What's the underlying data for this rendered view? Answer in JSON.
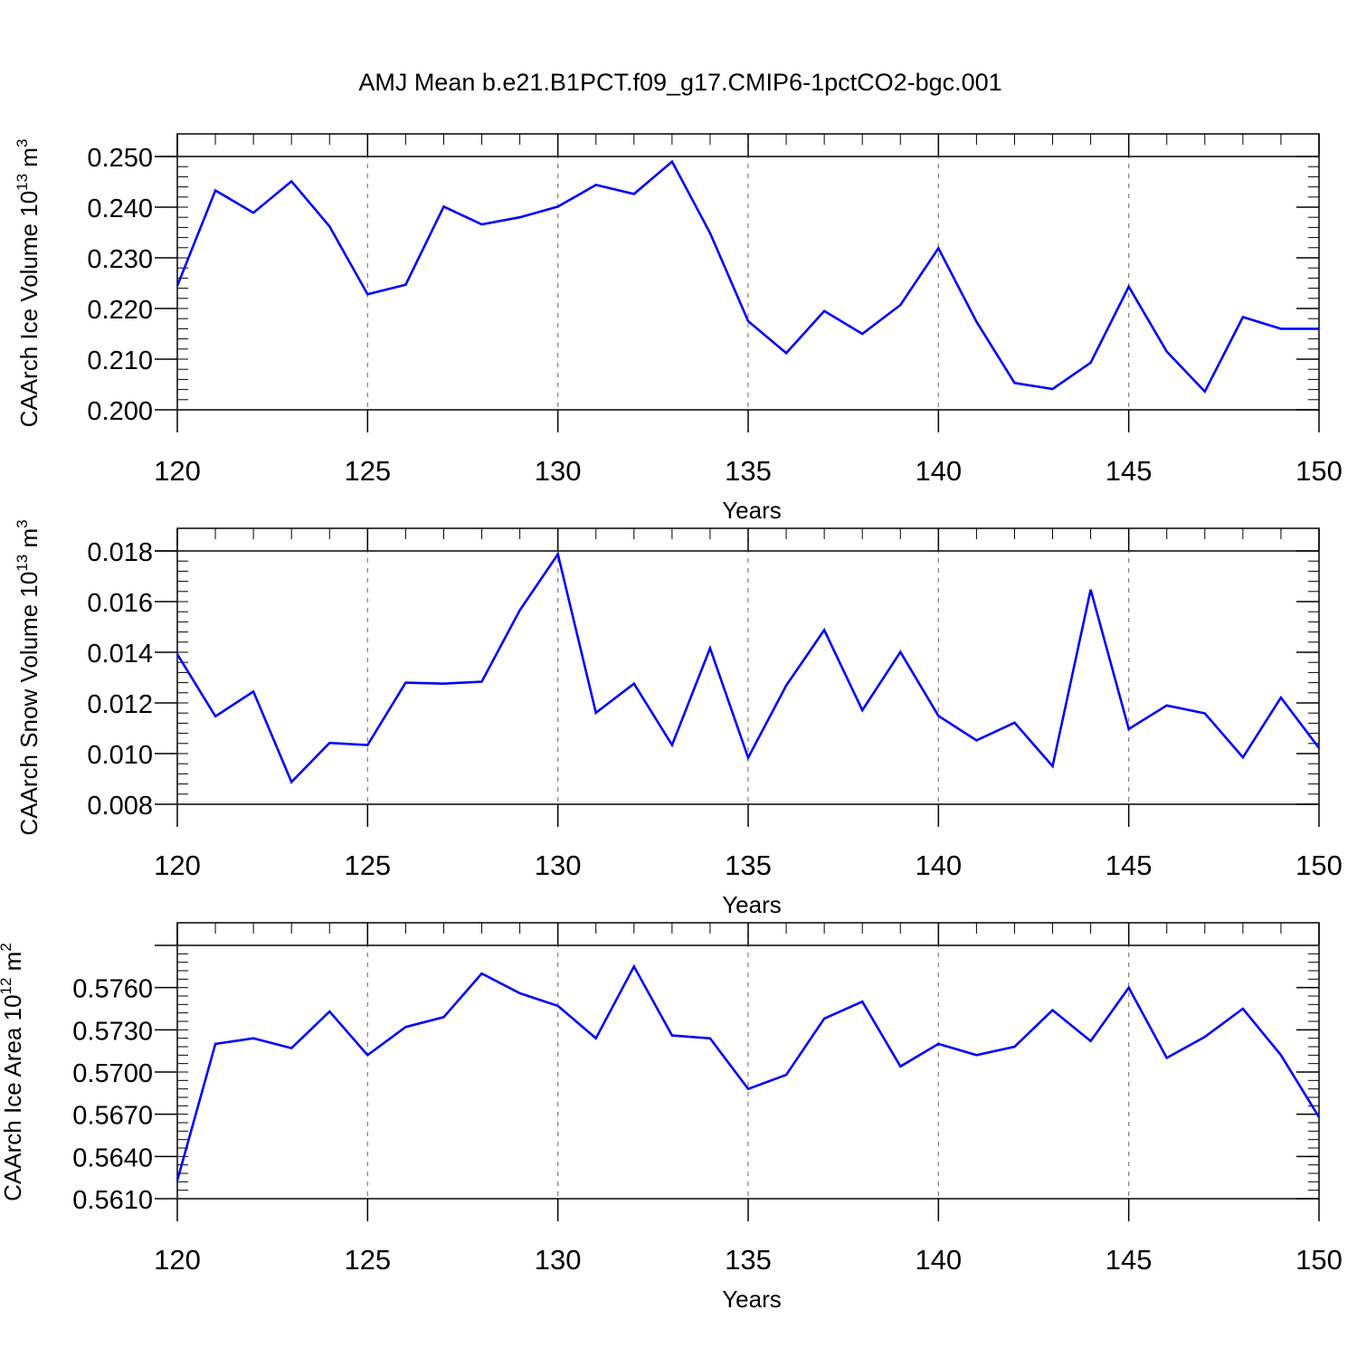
{
  "title": "AMJ Mean b.e21.B1PCT.f09_g17.CMIP6-1pctCO2-bgc.001",
  "line_color": "#0000ff",
  "chart_data": [
    {
      "type": "line",
      "ylabel": {
        "main": "CAArch Ice Volume 10",
        "sup": "13",
        "unit": " m",
        "unit_sup": "3"
      },
      "xlabel": "Years",
      "xlim": [
        120,
        150
      ],
      "ylim": [
        0.2,
        0.25
      ],
      "xticks": [
        120,
        125,
        130,
        135,
        140,
        145,
        150
      ],
      "yticks": [
        0.2,
        0.21,
        0.22,
        0.23,
        0.24,
        0.25
      ],
      "ytick_labels": [
        "0.200",
        "0.210",
        "0.220",
        "0.230",
        "0.240",
        "0.250"
      ],
      "x": [
        120,
        121,
        122,
        123,
        124,
        125,
        126,
        127,
        128,
        129,
        130,
        131,
        132,
        133,
        134,
        135,
        136,
        137,
        138,
        139,
        140,
        141,
        142,
        143,
        144,
        145,
        146,
        147,
        148,
        149,
        150
      ],
      "values": [
        0.2245,
        0.2433,
        0.2389,
        0.2451,
        0.2362,
        0.2228,
        0.2247,
        0.2401,
        0.2366,
        0.238,
        0.2401,
        0.2444,
        0.2426,
        0.249,
        0.2349,
        0.2175,
        0.2112,
        0.2195,
        0.215,
        0.2207,
        0.2319,
        0.2174,
        0.2053,
        0.2041,
        0.2093,
        0.2243,
        0.2115,
        0.2036,
        0.2183,
        0.216,
        0.216
      ]
    },
    {
      "type": "line",
      "ylabel": {
        "main": "CAArch Snow Volume 10",
        "sup": "13",
        "unit": " m",
        "unit_sup": "3"
      },
      "xlabel": "Years",
      "xlim": [
        120,
        150
      ],
      "ylim": [
        0.008,
        0.018
      ],
      "xticks": [
        120,
        125,
        130,
        135,
        140,
        145,
        150
      ],
      "yticks": [
        0.008,
        0.01,
        0.012,
        0.014,
        0.016,
        0.018
      ],
      "ytick_labels": [
        "0.008",
        "0.010",
        "0.012",
        "0.014",
        "0.016",
        "0.018"
      ],
      "x": [
        120,
        121,
        122,
        123,
        124,
        125,
        126,
        127,
        128,
        129,
        130,
        131,
        132,
        133,
        134,
        135,
        136,
        137,
        138,
        139,
        140,
        141,
        142,
        143,
        144,
        145,
        146,
        147,
        148,
        149,
        150
      ],
      "values": [
        0.01392,
        0.01147,
        0.01245,
        0.00888,
        0.01042,
        0.01034,
        0.0128,
        0.01276,
        0.01284,
        0.01566,
        0.01787,
        0.01161,
        0.01276,
        0.01034,
        0.01416,
        0.00984,
        0.01269,
        0.01488,
        0.01171,
        0.01401,
        0.01149,
        0.01052,
        0.01122,
        0.0095,
        0.01647,
        0.01097,
        0.0119,
        0.01159,
        0.00985,
        0.01221,
        0.01022
      ]
    },
    {
      "type": "line",
      "ylabel": {
        "main": "CAArch Ice Area 10",
        "sup": "12",
        "unit": " m",
        "unit_sup": "2"
      },
      "xlabel": "Years",
      "xlim": [
        120,
        150
      ],
      "ylim": [
        0.561,
        0.579
      ],
      "xticks": [
        120,
        125,
        130,
        135,
        140,
        145,
        150
      ],
      "yticks": [
        0.561,
        0.564,
        0.567,
        0.57,
        0.573,
        0.576
      ],
      "ytick_labels": [
        "0.5610",
        "0.5640",
        "0.5670",
        "0.5700",
        "0.5730",
        "0.5760"
      ],
      "x": [
        120,
        121,
        122,
        123,
        124,
        125,
        126,
        127,
        128,
        129,
        130,
        131,
        132,
        133,
        134,
        135,
        136,
        137,
        138,
        139,
        140,
        141,
        142,
        143,
        144,
        145,
        146,
        147,
        148,
        149,
        150
      ],
      "values": [
        0.5623,
        0.572,
        0.5724,
        0.5717,
        0.5743,
        0.5712,
        0.5732,
        0.5739,
        0.577,
        0.5756,
        0.5747,
        0.5724,
        0.5775,
        0.5726,
        0.5724,
        0.5688,
        0.5698,
        0.5738,
        0.575,
        0.5704,
        0.572,
        0.5712,
        0.5718,
        0.5744,
        0.5722,
        0.576,
        0.571,
        0.5725,
        0.5745,
        0.5712,
        0.5668
      ]
    }
  ]
}
